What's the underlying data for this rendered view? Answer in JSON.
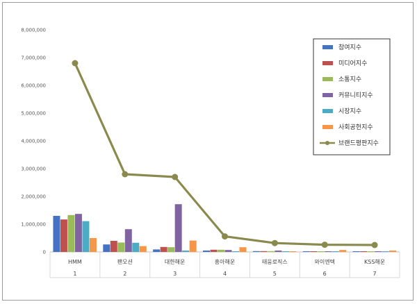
{
  "chart_data": {
    "type": "bar",
    "categories": [
      "HMM",
      "팬오션",
      "대한해운",
      "흥아해운",
      "태웅로직스",
      "와이엔텍",
      "KSS해운"
    ],
    "category_numbers": [
      "1",
      "2",
      "3",
      "4",
      "5",
      "6",
      "7"
    ],
    "ylim": [
      0,
      8000000
    ],
    "y_ticks": [
      "0",
      "1,000,000",
      "2,000,000",
      "3,000,000",
      "4,000,000",
      "5,000,000",
      "6,000,000",
      "7,000,000",
      "8,000,000"
    ],
    "grid": false,
    "legend_position": "top-right",
    "series": [
      {
        "name": "참여지수",
        "kind": "bar",
        "color": "#4472c4",
        "values": [
          1300000,
          270000,
          90000,
          50000,
          30000,
          20000,
          20000
        ]
      },
      {
        "name": "미디어지수",
        "kind": "bar",
        "color": "#c0504d",
        "values": [
          1170000,
          400000,
          180000,
          80000,
          30000,
          20000,
          20000
        ]
      },
      {
        "name": "소통지수",
        "kind": "bar",
        "color": "#9bbb59",
        "values": [
          1330000,
          340000,
          170000,
          80000,
          30000,
          20000,
          20000
        ]
      },
      {
        "name": "커뮤니티지수",
        "kind": "bar",
        "color": "#8064a2",
        "values": [
          1370000,
          820000,
          1720000,
          70000,
          50000,
          20000,
          20000
        ]
      },
      {
        "name": "시장지수",
        "kind": "bar",
        "color": "#4bacc6",
        "values": [
          1110000,
          330000,
          50000,
          20000,
          20000,
          20000,
          20000
        ]
      },
      {
        "name": "사회공헌지수",
        "kind": "bar",
        "color": "#f79646",
        "values": [
          500000,
          210000,
          410000,
          170000,
          20000,
          70000,
          50000
        ]
      },
      {
        "name": "브랜드평판지수",
        "kind": "line",
        "color": "#8a8a4e",
        "values": [
          6800000,
          2800000,
          2700000,
          560000,
          320000,
          260000,
          250000
        ]
      }
    ]
  }
}
